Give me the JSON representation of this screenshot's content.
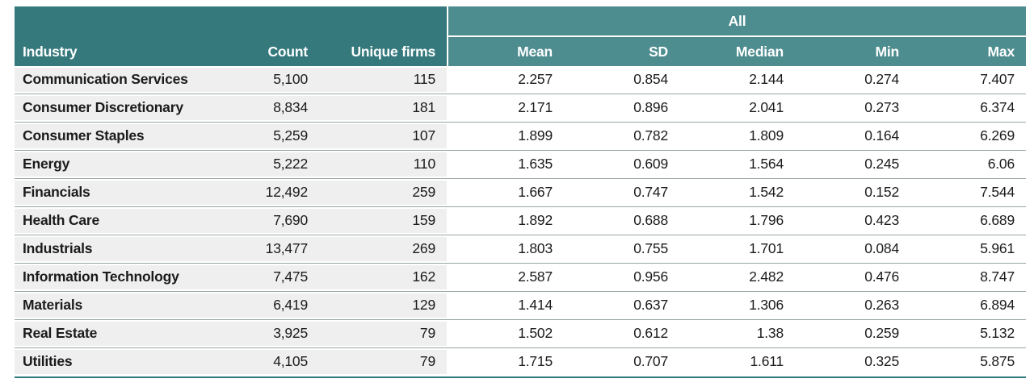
{
  "colors": {
    "header_left_bg": "#36797D",
    "header_right_bg": "#4D8C8F",
    "row_left_bg": "#EFEFEF",
    "row_right_bg": "#FFFFFF",
    "separator": "#9AA5A5",
    "bottom_border": "#2F7A7D",
    "header_text": "#FFFFFF",
    "body_text": "#1B1B1B"
  },
  "table": {
    "header": {
      "industry": "Industry",
      "count": "Count",
      "unique_firms": "Unique firms",
      "group": "All",
      "group_columns": [
        "Mean",
        "SD",
        "Median",
        "Min",
        "Max"
      ]
    },
    "rows": [
      [
        "Communication Services",
        "5,100",
        "115",
        "2.257",
        "0.854",
        "2.144",
        "0.274",
        "7.407"
      ],
      [
        "Consumer Discretionary",
        "8,834",
        "181",
        "2.171",
        "0.896",
        "2.041",
        "0.273",
        "6.374"
      ],
      [
        "Consumer Staples",
        "5,259",
        "107",
        "1.899",
        "0.782",
        "1.809",
        "0.164",
        "6.269"
      ],
      [
        "Energy",
        "5,222",
        "110",
        "1.635",
        "0.609",
        "1.564",
        "0.245",
        "6.06"
      ],
      [
        "Financials",
        "12,492",
        "259",
        "1.667",
        "0.747",
        "1.542",
        "0.152",
        "7.544"
      ],
      [
        "Health Care",
        "7,690",
        "159",
        "1.892",
        "0.688",
        "1.796",
        "0.423",
        "6.689"
      ],
      [
        "Industrials",
        "13,477",
        "269",
        "1.803",
        "0.755",
        "1.701",
        "0.084",
        "5.961"
      ],
      [
        "Information Technology",
        "7,475",
        "162",
        "2.587",
        "0.956",
        "2.482",
        "0.476",
        "8.747"
      ],
      [
        "Materials",
        "6,419",
        "129",
        "1.414",
        "0.637",
        "1.306",
        "0.263",
        "6.894"
      ],
      [
        "Real Estate",
        "3,925",
        "79",
        "1.502",
        "0.612",
        "1.38",
        "0.259",
        "5.132"
      ],
      [
        "Utilities",
        "4,105",
        "79",
        "1.715",
        "0.707",
        "1.611",
        "0.325",
        "5.875"
      ]
    ]
  }
}
